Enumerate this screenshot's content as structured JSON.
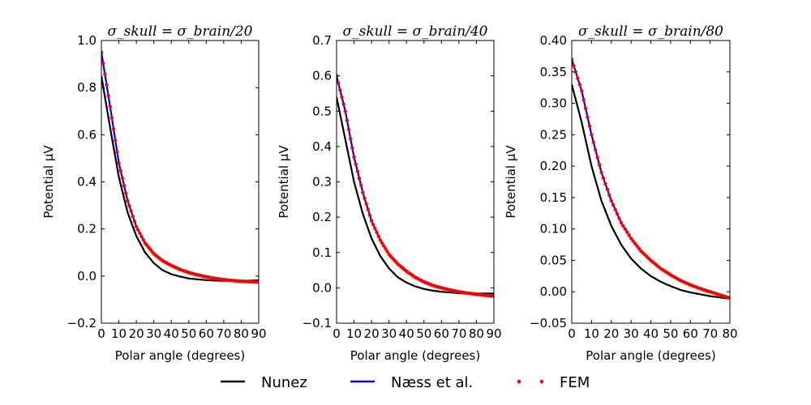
{
  "figure": {
    "legend": [
      {
        "label": "Nunez",
        "color": "#000000",
        "style": "line"
      },
      {
        "label": "Næss et al.",
        "color": "#0000ff",
        "style": "line"
      },
      {
        "label": "FEM",
        "color": "#ff0000",
        "style": "dots"
      }
    ],
    "legend_placement": "bottom-center"
  },
  "chart_data": [
    {
      "type": "line",
      "title": "σ_skull = σ_brain/20",
      "xlabel": "Polar angle (degrees)",
      "ylabel": "Potential μV",
      "xlim": [
        0,
        90
      ],
      "ylim": [
        -0.2,
        1.0
      ],
      "xticks": [
        0,
        10,
        20,
        30,
        40,
        50,
        60,
        70,
        80,
        90
      ],
      "xticklabels": [
        "0",
        "10",
        "20",
        "30",
        "40",
        "50",
        "60",
        "70",
        "80",
        "90"
      ],
      "yticks": [
        -0.2,
        0.0,
        0.2,
        0.4,
        0.6,
        0.8,
        1.0
      ],
      "yticklabels": [
        "−0.2",
        "0.0",
        "0.2",
        "0.4",
        "0.6",
        "0.8",
        "1.0"
      ],
      "grid": false,
      "series": [
        {
          "name": "Nunez",
          "color": "#000000",
          "x": [
            0,
            5,
            10,
            15,
            20,
            25,
            30,
            35,
            40,
            45,
            50,
            55,
            60,
            65,
            70,
            75,
            80,
            85,
            90
          ],
          "y": [
            0.85,
            0.63,
            0.42,
            0.27,
            0.17,
            0.1,
            0.055,
            0.025,
            0.008,
            -0.002,
            -0.01,
            -0.014,
            -0.017,
            -0.019,
            -0.02,
            -0.02,
            -0.02,
            -0.019,
            -0.018
          ]
        },
        {
          "name": "Næss et al.",
          "color": "#0000ff",
          "x": [
            0,
            5,
            10,
            15,
            20,
            25,
            30,
            35,
            40,
            45,
            50,
            55,
            60,
            65,
            70,
            75,
            80,
            85,
            90
          ],
          "y": [
            0.95,
            0.72,
            0.48,
            0.32,
            0.21,
            0.14,
            0.095,
            0.065,
            0.045,
            0.028,
            0.015,
            0.005,
            -0.003,
            -0.01,
            -0.015,
            -0.019,
            -0.022,
            -0.024,
            -0.025
          ]
        },
        {
          "name": "FEM",
          "color": "#ff0000",
          "x": [
            0,
            5,
            10,
            15,
            20,
            25,
            30,
            35,
            40,
            45,
            50,
            55,
            60,
            65,
            70,
            75,
            80,
            85,
            90
          ],
          "y": [
            0.95,
            0.72,
            0.48,
            0.32,
            0.21,
            0.14,
            0.095,
            0.065,
            0.045,
            0.028,
            0.015,
            0.005,
            -0.003,
            -0.01,
            -0.015,
            -0.019,
            -0.022,
            -0.024,
            -0.025
          ]
        }
      ]
    },
    {
      "type": "line",
      "title": "σ_skull = σ_brain/40",
      "xlabel": "Polar angle (degrees)",
      "ylabel": "Potential μV",
      "xlim": [
        0,
        90
      ],
      "ylim": [
        -0.1,
        0.7
      ],
      "xticks": [
        0,
        10,
        20,
        30,
        40,
        50,
        60,
        70,
        80,
        90
      ],
      "xticklabels": [
        "0",
        "10",
        "20",
        "30",
        "40",
        "50",
        "60",
        "70",
        "80",
        "90"
      ],
      "yticks": [
        -0.1,
        0.0,
        0.1,
        0.2,
        0.3,
        0.4,
        0.5,
        0.6,
        0.7
      ],
      "yticklabels": [
        "−0.1",
        "0.0",
        "0.1",
        "0.2",
        "0.3",
        "0.4",
        "0.5",
        "0.6",
        "0.7"
      ],
      "grid": false,
      "series": [
        {
          "name": "Nunez",
          "color": "#000000",
          "x": [
            0,
            5,
            10,
            15,
            20,
            25,
            30,
            35,
            40,
            45,
            50,
            55,
            60,
            65,
            70,
            75,
            80,
            85,
            90
          ],
          "y": [
            0.54,
            0.42,
            0.3,
            0.21,
            0.14,
            0.09,
            0.055,
            0.03,
            0.015,
            0.004,
            -0.003,
            -0.008,
            -0.011,
            -0.013,
            -0.015,
            -0.016,
            -0.016,
            -0.016,
            -0.016
          ]
        },
        {
          "name": "Næss et al.",
          "color": "#0000ff",
          "x": [
            0,
            5,
            10,
            15,
            20,
            25,
            30,
            35,
            40,
            45,
            50,
            55,
            60,
            65,
            70,
            75,
            80,
            85,
            90
          ],
          "y": [
            0.6,
            0.5,
            0.37,
            0.27,
            0.19,
            0.135,
            0.095,
            0.068,
            0.047,
            0.03,
            0.017,
            0.007,
            0.0,
            -0.006,
            -0.011,
            -0.015,
            -0.018,
            -0.021,
            -0.023
          ]
        },
        {
          "name": "FEM",
          "color": "#ff0000",
          "x": [
            0,
            5,
            10,
            15,
            20,
            25,
            30,
            35,
            40,
            45,
            50,
            55,
            60,
            65,
            70,
            75,
            80,
            85,
            90
          ],
          "y": [
            0.6,
            0.5,
            0.37,
            0.27,
            0.19,
            0.135,
            0.095,
            0.068,
            0.047,
            0.03,
            0.017,
            0.007,
            0.0,
            -0.006,
            -0.011,
            -0.015,
            -0.018,
            -0.021,
            -0.023
          ]
        }
      ]
    },
    {
      "type": "line",
      "title": "σ_skull = σ_brain/80",
      "xlabel": "Polar angle (degrees)",
      "ylabel": "Potential μV",
      "xlim": [
        0,
        80
      ],
      "ylim": [
        -0.05,
        0.4
      ],
      "xticks": [
        0,
        10,
        20,
        30,
        40,
        50,
        60,
        70,
        80
      ],
      "xticklabels": [
        "0",
        "10",
        "20",
        "30",
        "40",
        "50",
        "60",
        "70",
        "80"
      ],
      "yticks": [
        -0.05,
        0.0,
        0.05,
        0.1,
        0.15,
        0.2,
        0.25,
        0.3,
        0.35,
        0.4
      ],
      "yticklabels": [
        "−0.05",
        "0.00",
        "0.05",
        "0.10",
        "0.15",
        "0.20",
        "0.25",
        "0.30",
        "0.35",
        "0.40"
      ],
      "grid": false,
      "series": [
        {
          "name": "Nunez",
          "color": "#000000",
          "x": [
            0,
            5,
            10,
            15,
            20,
            25,
            30,
            35,
            40,
            45,
            50,
            55,
            60,
            65,
            70,
            75,
            80
          ],
          "y": [
            0.33,
            0.27,
            0.2,
            0.145,
            0.105,
            0.075,
            0.053,
            0.037,
            0.025,
            0.016,
            0.009,
            0.003,
            -0.001,
            -0.004,
            -0.007,
            -0.009,
            -0.011
          ]
        },
        {
          "name": "Næss et al.",
          "color": "#0000ff",
          "x": [
            0,
            5,
            10,
            15,
            20,
            25,
            30,
            35,
            40,
            45,
            50,
            55,
            60,
            65,
            70,
            75,
            80
          ],
          "y": [
            0.37,
            0.32,
            0.25,
            0.19,
            0.145,
            0.11,
            0.085,
            0.065,
            0.05,
            0.037,
            0.027,
            0.018,
            0.011,
            0.005,
            0.0,
            -0.005,
            -0.01
          ]
        },
        {
          "name": "FEM",
          "color": "#ff0000",
          "x": [
            0,
            5,
            10,
            15,
            20,
            25,
            30,
            35,
            40,
            45,
            50,
            55,
            60,
            65,
            70,
            75,
            80
          ],
          "y": [
            0.37,
            0.32,
            0.25,
            0.19,
            0.145,
            0.11,
            0.085,
            0.065,
            0.05,
            0.037,
            0.027,
            0.018,
            0.011,
            0.005,
            0.0,
            -0.005,
            -0.01
          ]
        }
      ]
    }
  ]
}
